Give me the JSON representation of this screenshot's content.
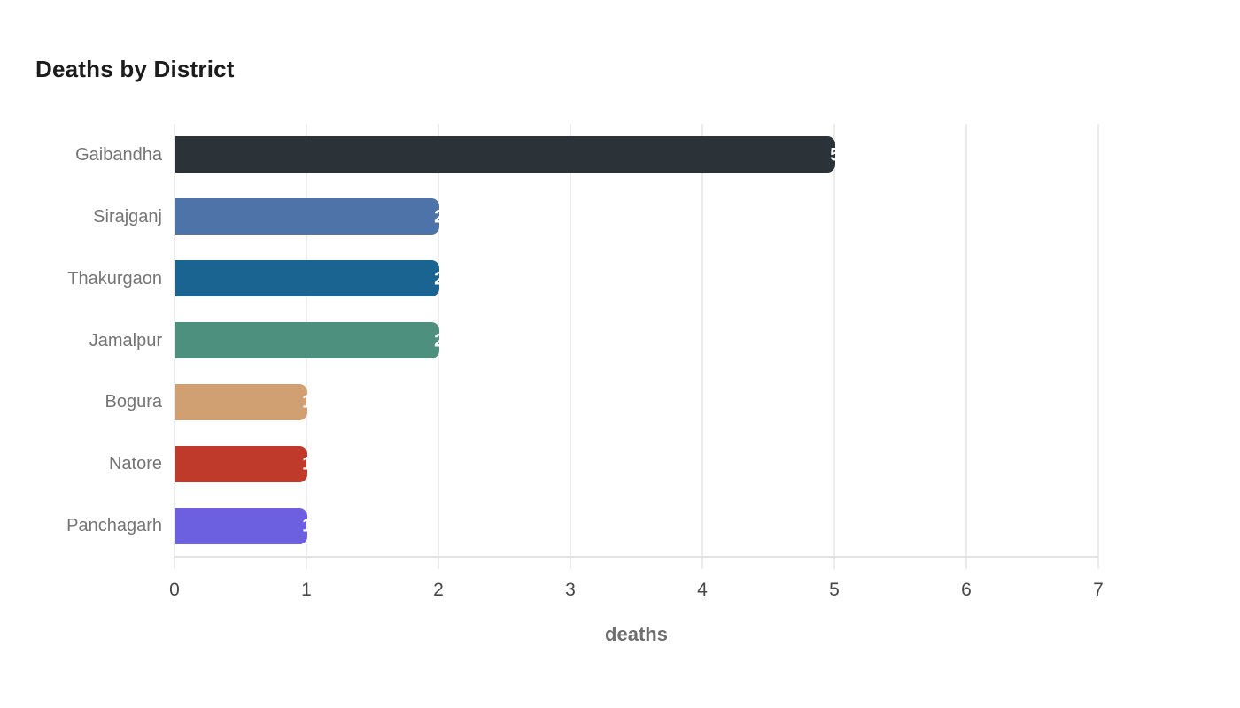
{
  "chart_data": {
    "type": "bar",
    "orientation": "horizontal",
    "title": "Deaths by District",
    "xlabel": "deaths",
    "ylabel": "",
    "categories": [
      "Gaibandha",
      "Sirajganj",
      "Thakurgaon",
      "Jamalpur",
      "Bogura",
      "Natore",
      "Panchagarh"
    ],
    "values": [
      5,
      2,
      2,
      2,
      1,
      1,
      1
    ],
    "value_labels": [
      "5",
      "2",
      "2",
      "2",
      "1",
      "1",
      "1"
    ],
    "bar_colors": [
      "#2b3338",
      "#4d73a8",
      "#1a6491",
      "#4e907e",
      "#d1a072",
      "#c03a2b",
      "#6c5fe0"
    ],
    "xlim": [
      0,
      7
    ],
    "xticks": [
      0,
      1,
      2,
      3,
      4,
      5,
      6,
      7
    ],
    "grid": true,
    "grid_color": "#ececec",
    "axis_line_color": "#e2e2e2",
    "value_label_color": "#ffffff",
    "category_label_color": "#757575",
    "tick_label_color": "#474747",
    "title_color": "#1c1c1c",
    "xlabel_color": "#6e6e6e",
    "background": "#ffffff"
  }
}
